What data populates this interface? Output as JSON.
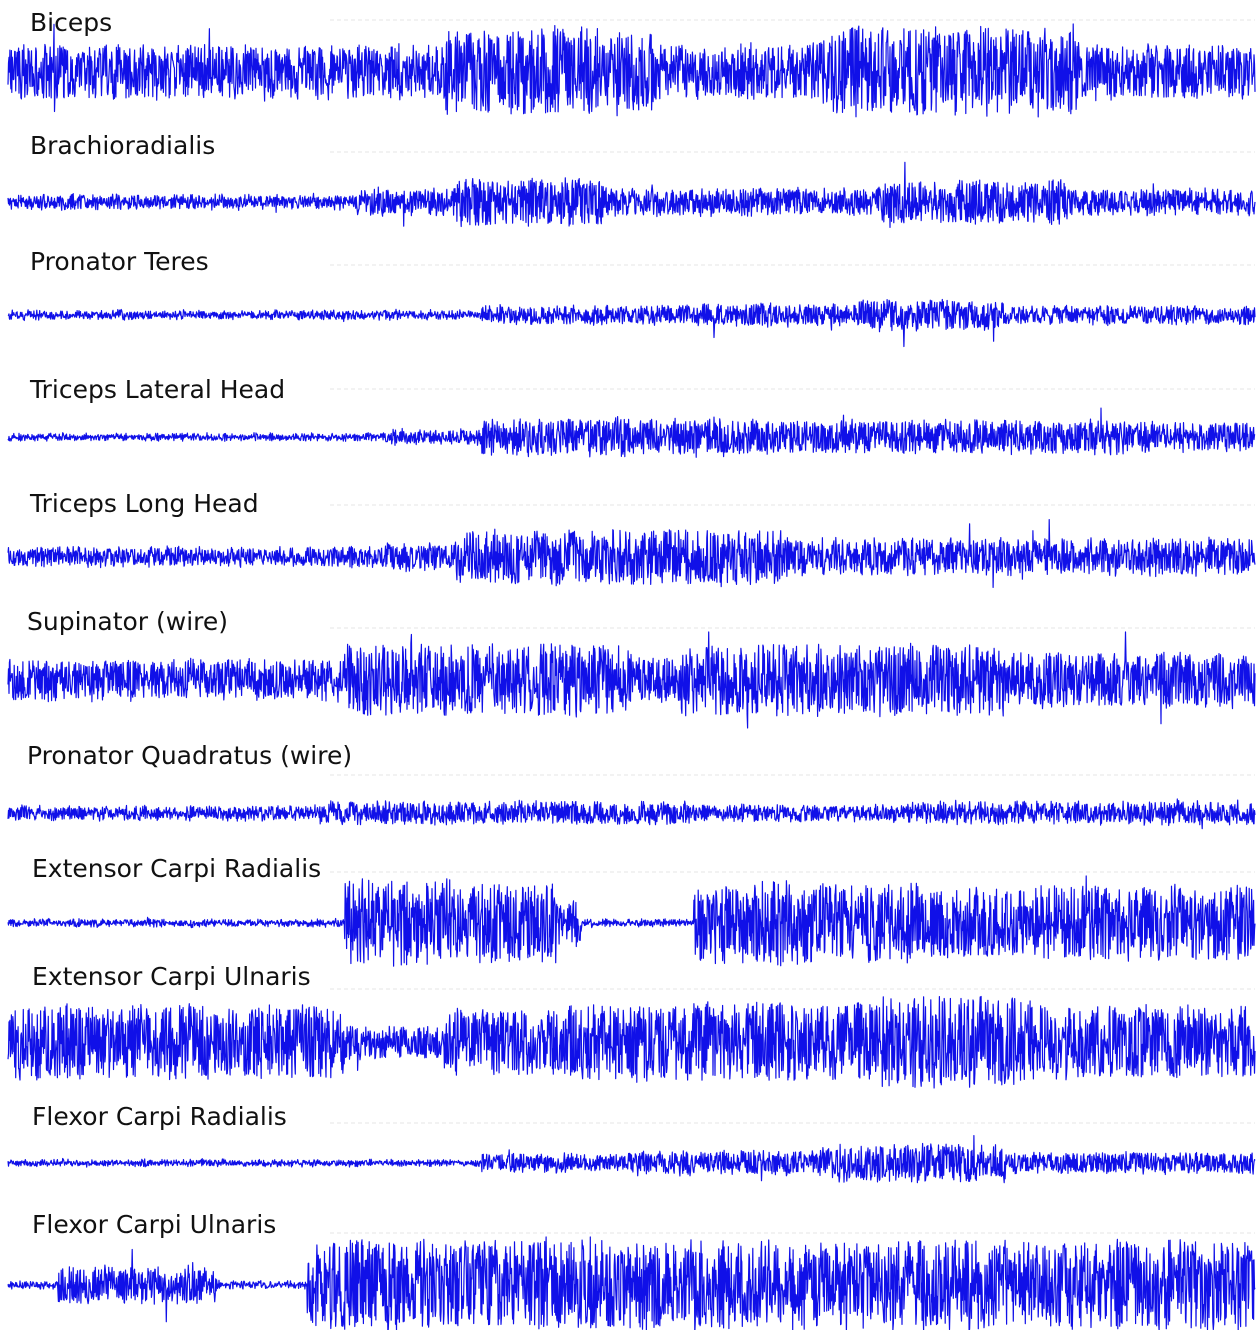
{
  "chart_data": {
    "type": "line",
    "trace_color": "#1010e8",
    "x_span": [
      0,
      1
    ],
    "grid": false,
    "legend": "none",
    "channels": [
      {
        "name": "Biceps",
        "baseline": 0.6,
        "bursts": [
          [
            0.3,
            0.345,
            0.5
          ],
          [
            0.35,
            0.425,
            0.95
          ],
          [
            0.425,
            0.475,
            1.0
          ],
          [
            0.475,
            0.52,
            0.85
          ],
          [
            0.52,
            0.63,
            0.35
          ],
          [
            0.64,
            0.66,
            0.7
          ],
          [
            0.66,
            0.67,
            0.9
          ],
          [
            0.67,
            0.86,
            1.0
          ],
          [
            0.86,
            0.88,
            0.5
          ]
        ]
      },
      {
        "name": "Brachioradialis",
        "baseline": 0.15,
        "bursts": [
          [
            0.28,
            0.36,
            0.3
          ],
          [
            0.36,
            0.48,
            0.55
          ],
          [
            0.48,
            0.7,
            0.3
          ],
          [
            0.7,
            0.85,
            0.5
          ],
          [
            0.85,
            1.0,
            0.3
          ]
        ]
      },
      {
        "name": "Pronator Teres",
        "baseline": 0.08,
        "bursts": [
          [
            0.38,
            0.55,
            0.2
          ],
          [
            0.55,
            0.68,
            0.25
          ],
          [
            0.68,
            0.8,
            0.35
          ],
          [
            0.8,
            1.0,
            0.2
          ]
        ]
      },
      {
        "name": "Triceps Lateral Head",
        "baseline": 0.05,
        "bursts": [
          [
            0.3,
            0.38,
            0.15
          ],
          [
            0.38,
            0.6,
            0.45
          ],
          [
            0.6,
            0.9,
            0.4
          ],
          [
            0.9,
            1.0,
            0.35
          ]
        ]
      },
      {
        "name": "Triceps Long Head",
        "baseline": 0.2,
        "bursts": [
          [
            0.3,
            0.36,
            0.3
          ],
          [
            0.36,
            0.62,
            0.6
          ],
          [
            0.62,
            1.0,
            0.4
          ]
        ]
      },
      {
        "name": "Supinator (wire)",
        "baseline": 0.45,
        "bursts": [
          [
            0.27,
            0.5,
            0.8
          ],
          [
            0.5,
            0.54,
            0.5
          ],
          [
            0.54,
            0.8,
            0.8
          ],
          [
            0.8,
            1.0,
            0.6
          ]
        ]
      },
      {
        "name": "Pronator Quadratus (wire)",
        "baseline": 0.2,
        "bursts": [
          [
            0.25,
            0.55,
            0.35
          ],
          [
            0.55,
            0.72,
            0.25
          ],
          [
            0.72,
            1.0,
            0.35
          ]
        ]
      },
      {
        "name": "Extensor Carpi Radialis",
        "baseline": 0.05,
        "bursts": [
          [
            0.27,
            0.285,
            1.0
          ],
          [
            0.285,
            0.36,
            1.0
          ],
          [
            0.36,
            0.44,
            0.9
          ],
          [
            0.44,
            0.46,
            0.5
          ],
          [
            0.55,
            0.6,
            0.9
          ],
          [
            0.6,
            0.64,
            1.0
          ],
          [
            0.64,
            0.73,
            0.9
          ],
          [
            0.73,
            0.81,
            0.8
          ],
          [
            0.81,
            1.0,
            0.85
          ]
        ]
      },
      {
        "name": "Extensor Carpi Ulnaris",
        "baseline": 0.35,
        "bursts": [
          [
            0.0,
            0.27,
            0.8
          ],
          [
            0.35,
            0.45,
            0.7
          ],
          [
            0.45,
            0.7,
            0.85
          ],
          [
            0.7,
            0.82,
            1.0
          ],
          [
            0.82,
            1.0,
            0.8
          ]
        ]
      },
      {
        "name": "Flexor Carpi Radialis",
        "baseline": 0.05,
        "bursts": [
          [
            0.38,
            0.5,
            0.25
          ],
          [
            0.5,
            0.65,
            0.35
          ],
          [
            0.65,
            0.8,
            0.55
          ],
          [
            0.8,
            1.0,
            0.3
          ]
        ]
      },
      {
        "name": "Flexor Carpi Ulnaris",
        "baseline": 0.05,
        "bursts": [
          [
            0.04,
            0.17,
            0.4
          ],
          [
            0.24,
            1.0,
            1.0
          ]
        ]
      }
    ]
  }
}
